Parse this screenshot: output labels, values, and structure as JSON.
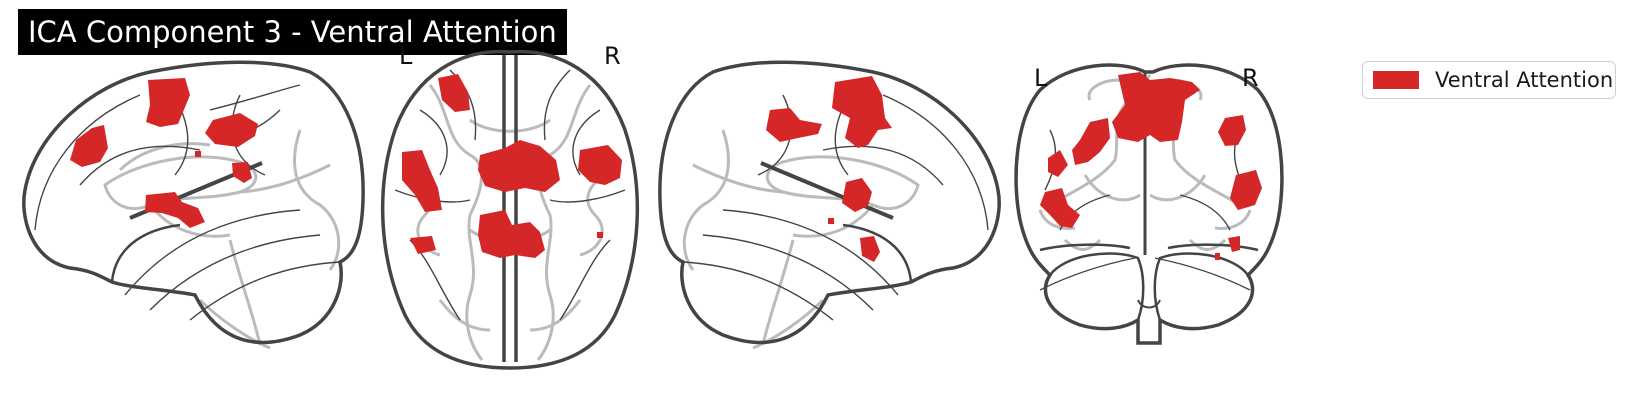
{
  "figure": {
    "title": "ICA Component 3 - Ventral Attention",
    "orientation_labels": {
      "axial_left": "L",
      "axial_right": "R",
      "coronal_left": "L",
      "coronal_right": "R"
    },
    "legend": {
      "entries": [
        {
          "label": "Ventral Attention",
          "color": "#d62728"
        }
      ]
    },
    "colors": {
      "activation": "#d62728",
      "outline": "#444444",
      "internal_lines": "#bbbbbb",
      "background": "#ffffff",
      "title_background": "#000000",
      "title_text": "#ffffff"
    },
    "views": [
      "sagittal-left",
      "axial",
      "sagittal-right",
      "coronal"
    ]
  }
}
